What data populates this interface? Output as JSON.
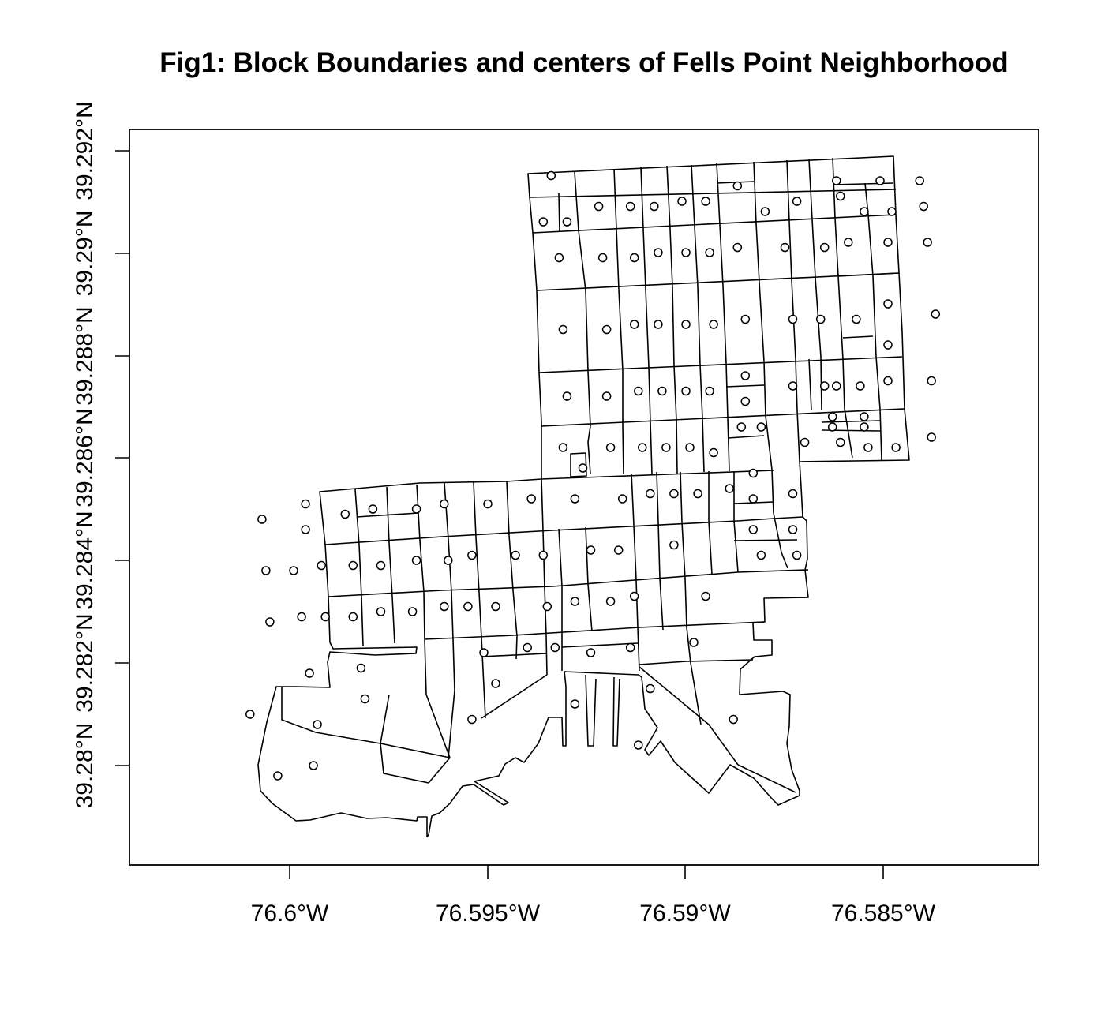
{
  "figure": {
    "title": "Fig1: Block Boundaries and centers of Fells Point Neighborhood"
  },
  "axes": {
    "x_ticks": [
      "76.6°W",
      "76.595°W",
      "76.59°W",
      "76.585°W"
    ],
    "y_ticks": [
      "39.28°N",
      "39.282°N",
      "39.284°N",
      "39.286°N",
      "39.288°N",
      "39.29°N",
      "39.292°N"
    ]
  },
  "chart_data": {
    "type": "scatter",
    "title": "Fig1: Block Boundaries and centers of Fells Point Neighborhood",
    "x_tick_values": [
      -76.6,
      -76.595,
      -76.59,
      -76.585
    ],
    "y_tick_values": [
      39.28,
      39.282,
      39.284,
      39.286,
      39.288,
      39.29,
      39.292
    ],
    "xlim": [
      -76.604,
      -76.581
    ],
    "ylim": [
      39.2786,
      39.2928
    ],
    "grid": false,
    "legend": "none",
    "series": [
      {
        "values": [
          [
            -76.5934,
            39.2915
          ],
          [
            -76.5936,
            39.2906
          ],
          [
            -76.593,
            39.2906
          ],
          [
            -76.5922,
            39.2909
          ],
          [
            -76.5914,
            39.2909
          ],
          [
            -76.5908,
            39.2909
          ],
          [
            -76.5901,
            39.291
          ],
          [
            -76.5895,
            39.291
          ],
          [
            -76.5887,
            39.2913
          ],
          [
            -76.588,
            39.2908
          ],
          [
            -76.5872,
            39.291
          ],
          [
            -76.5861,
            39.2911
          ],
          [
            -76.5855,
            39.2908
          ],
          [
            -76.5848,
            39.2908
          ],
          [
            -76.584,
            39.2909
          ],
          [
            -76.5862,
            39.2914
          ],
          [
            -76.5851,
            39.2914
          ],
          [
            -76.5841,
            39.2914
          ],
          [
            -76.5932,
            39.2899
          ],
          [
            -76.5921,
            39.2899
          ],
          [
            -76.5913,
            39.2899
          ],
          [
            -76.5907,
            39.29
          ],
          [
            -76.59,
            39.29
          ],
          [
            -76.5894,
            39.29
          ],
          [
            -76.5887,
            39.2901
          ],
          [
            -76.5875,
            39.2901
          ],
          [
            -76.5865,
            39.2901
          ],
          [
            -76.5859,
            39.2902
          ],
          [
            -76.5849,
            39.2902
          ],
          [
            -76.5839,
            39.2902
          ],
          [
            -76.5931,
            39.2885
          ],
          [
            -76.592,
            39.2885
          ],
          [
            -76.5913,
            39.2886
          ],
          [
            -76.5907,
            39.2886
          ],
          [
            -76.59,
            39.2886
          ],
          [
            -76.5893,
            39.2886
          ],
          [
            -76.5885,
            39.2887
          ],
          [
            -76.5873,
            39.2887
          ],
          [
            -76.5866,
            39.2887
          ],
          [
            -76.5857,
            39.2887
          ],
          [
            -76.5849,
            39.289
          ],
          [
            -76.5837,
            39.2888
          ],
          [
            -76.5849,
            39.2882
          ],
          [
            -76.593,
            39.2872
          ],
          [
            -76.592,
            39.2872
          ],
          [
            -76.5912,
            39.2873
          ],
          [
            -76.5906,
            39.2873
          ],
          [
            -76.59,
            39.2873
          ],
          [
            -76.5894,
            39.2873
          ],
          [
            -76.5885,
            39.2876
          ],
          [
            -76.5885,
            39.2871
          ],
          [
            -76.5873,
            39.2874
          ],
          [
            -76.5865,
            39.2874
          ],
          [
            -76.5862,
            39.2874
          ],
          [
            -76.5856,
            39.2874
          ],
          [
            -76.5849,
            39.2875
          ],
          [
            -76.5838,
            39.2875
          ],
          [
            -76.5863,
            39.2868
          ],
          [
            -76.5855,
            39.2868
          ],
          [
            -76.5863,
            39.2866
          ],
          [
            -76.5855,
            39.2866
          ],
          [
            -76.5931,
            39.2862
          ],
          [
            -76.5926,
            39.2858
          ],
          [
            -76.5919,
            39.2862
          ],
          [
            -76.5911,
            39.2862
          ],
          [
            -76.5905,
            39.2862
          ],
          [
            -76.5899,
            39.2862
          ],
          [
            -76.5893,
            39.2861
          ],
          [
            -76.5886,
            39.2866
          ],
          [
            -76.5881,
            39.2866
          ],
          [
            -76.587,
            39.2863
          ],
          [
            -76.5861,
            39.2863
          ],
          [
            -76.5854,
            39.2862
          ],
          [
            -76.5847,
            39.2862
          ],
          [
            -76.5838,
            39.2864
          ],
          [
            -76.6007,
            39.2848
          ],
          [
            -76.5996,
            39.2851
          ],
          [
            -76.5986,
            39.2849
          ],
          [
            -76.5979,
            39.285
          ],
          [
            -76.5968,
            39.285
          ],
          [
            -76.5961,
            39.2851
          ],
          [
            -76.595,
            39.2851
          ],
          [
            -76.5939,
            39.2852
          ],
          [
            -76.5928,
            39.2852
          ],
          [
            -76.5916,
            39.2852
          ],
          [
            -76.5909,
            39.2853
          ],
          [
            -76.5903,
            39.2853
          ],
          [
            -76.5897,
            39.2853
          ],
          [
            -76.5889,
            39.2854
          ],
          [
            -76.5883,
            39.2857
          ],
          [
            -76.5883,
            39.2852
          ],
          [
            -76.5873,
            39.2853
          ],
          [
            -76.5996,
            39.2846
          ],
          [
            -76.5883,
            39.2846
          ],
          [
            -76.5873,
            39.2846
          ],
          [
            -76.6006,
            39.2838
          ],
          [
            -76.5999,
            39.2838
          ],
          [
            -76.5992,
            39.2839
          ],
          [
            -76.5984,
            39.2839
          ],
          [
            -76.5977,
            39.2839
          ],
          [
            -76.5968,
            39.284
          ],
          [
            -76.596,
            39.284
          ],
          [
            -76.5954,
            39.2841
          ],
          [
            -76.5943,
            39.2841
          ],
          [
            -76.5936,
            39.2841
          ],
          [
            -76.5924,
            39.2842
          ],
          [
            -76.5917,
            39.2842
          ],
          [
            -76.5903,
            39.2843
          ],
          [
            -76.5881,
            39.2841
          ],
          [
            -76.5872,
            39.2841
          ],
          [
            -76.6005,
            39.2828
          ],
          [
            -76.5997,
            39.2829
          ],
          [
            -76.5991,
            39.2829
          ],
          [
            -76.5984,
            39.2829
          ],
          [
            -76.5977,
            39.283
          ],
          [
            -76.5969,
            39.283
          ],
          [
            -76.5961,
            39.2831
          ],
          [
            -76.5955,
            39.2831
          ],
          [
            -76.5948,
            39.2831
          ],
          [
            -76.5935,
            39.2831
          ],
          [
            -76.5928,
            39.2832
          ],
          [
            -76.5919,
            39.2832
          ],
          [
            -76.5913,
            39.2833
          ],
          [
            -76.5895,
            39.2833
          ],
          [
            -76.5951,
            39.2822
          ],
          [
            -76.594,
            39.2823
          ],
          [
            -76.5933,
            39.2823
          ],
          [
            -76.5924,
            39.2822
          ],
          [
            -76.5914,
            39.2823
          ],
          [
            -76.5898,
            39.2824
          ],
          [
            -76.5982,
            39.2819
          ],
          [
            -76.5995,
            39.2818
          ],
          [
            -76.5948,
            39.2816
          ],
          [
            -76.5909,
            39.2815
          ],
          [
            -76.601,
            39.281
          ],
          [
            -76.5981,
            39.2813
          ],
          [
            -76.5954,
            39.2809
          ],
          [
            -76.5928,
            39.2812
          ],
          [
            -76.5888,
            39.2809
          ],
          [
            -76.5993,
            39.2808
          ],
          [
            -76.5912,
            39.2804
          ],
          [
            -76.6003,
            39.2798
          ],
          [
            -76.5994,
            39.28
          ]
        ]
      }
    ]
  }
}
